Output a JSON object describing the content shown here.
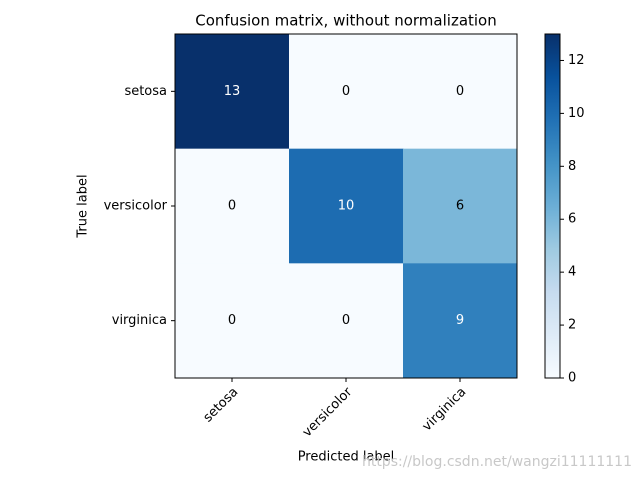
{
  "chart_data": {
    "type": "heatmap",
    "title": "Confusion matrix, without normalization",
    "xlabel": "Predicted label",
    "ylabel": "True label",
    "x_categories": [
      "setosa",
      "versicolor",
      "virginica"
    ],
    "y_categories": [
      "setosa",
      "versicolor",
      "virginica"
    ],
    "values": [
      [
        13,
        0,
        0
      ],
      [
        0,
        10,
        6
      ],
      [
        0,
        0,
        9
      ]
    ],
    "colormap": "Blues",
    "clim": [
      0,
      13
    ],
    "cticks": [
      0,
      2,
      4,
      6,
      8,
      10,
      12
    ],
    "watermark": "https://blog.csdn.net/wangzi11111111"
  }
}
